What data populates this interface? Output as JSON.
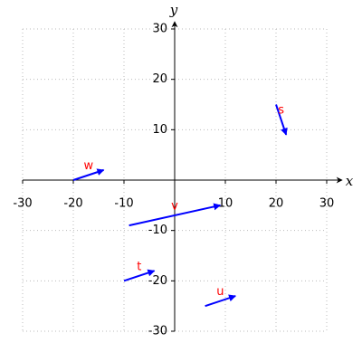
{
  "chart_data": {
    "type": "vector",
    "xlabel": "x",
    "ylabel": "y",
    "xlim": [
      -30,
      30
    ],
    "ylim": [
      -30,
      30
    ],
    "xticks": [
      -30,
      -20,
      -10,
      10,
      20,
      30
    ],
    "yticks": [
      -30,
      -20,
      -10,
      10,
      20,
      30
    ],
    "grid": true,
    "color": "#0000ff",
    "label_color": "#ff0000",
    "vectors": [
      {
        "name": "w",
        "x": -20,
        "y": 0,
        "dx": 6,
        "dy": 2
      },
      {
        "name": "s",
        "x": 20,
        "y": 15,
        "dx": 2,
        "dy": -6
      },
      {
        "name": "v",
        "x": -9,
        "y": -9,
        "dx": 18,
        "dy": 4
      },
      {
        "name": "t",
        "x": -10,
        "y": -20,
        "dx": 6,
        "dy": 2
      },
      {
        "name": "u",
        "x": 6,
        "y": -25,
        "dx": 6,
        "dy": 2
      }
    ]
  }
}
